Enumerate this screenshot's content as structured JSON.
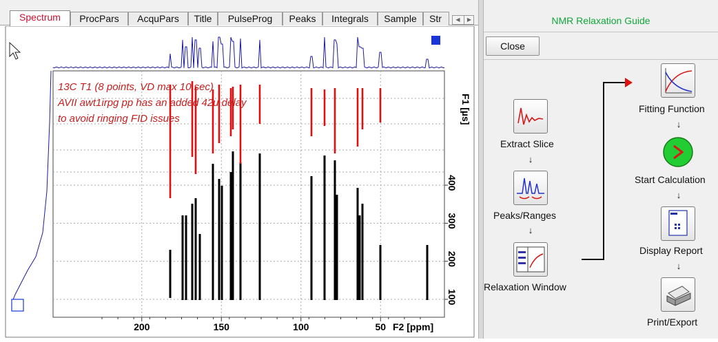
{
  "tabs": [
    {
      "label": "Spectrum",
      "active": true
    },
    {
      "label": "ProcPars"
    },
    {
      "label": "AcquPars"
    },
    {
      "label": "Title"
    },
    {
      "label": "PulseProg"
    },
    {
      "label": "Peaks"
    },
    {
      "label": "Integrals"
    },
    {
      "label": "Sample"
    },
    {
      "label": "Str"
    }
  ],
  "tab_scroll": {
    "left_icon": "triangle-left-icon",
    "right_icon": "triangle-right-icon"
  },
  "spectrum": {
    "annotation_lines": [
      "13C T1 (8 points, VD max 10 sec)",
      "AVII awt1irpg pp has an added 42u delay",
      "to avoid ringing FID issues"
    ],
    "f1_axis_label": "F1 [µs]",
    "f1_ticks": [
      "100",
      "200",
      "300",
      "400"
    ],
    "f2_axis_label": "F2 [ppm]",
    "f2_ticks": [
      "200",
      "150",
      "100",
      "50"
    ],
    "colors": {
      "positive": "#000000",
      "negative": "#dd1111",
      "projection": "#1a1aa0",
      "text_red": "#c81e1e",
      "grid": "#a8a8a8",
      "marker": "#1a34d8"
    }
  },
  "guide": {
    "title": "NMR Relaxation Guide",
    "close_label": "Close",
    "steps": [
      {
        "label": "Extract Slice",
        "icon": "extract-slice-icon"
      },
      {
        "label": "Peaks/Ranges",
        "icon": "peaks-ranges-icon"
      },
      {
        "label": "Relaxation Window",
        "icon": "relaxation-window-icon"
      },
      {
        "label": "Fitting Function",
        "icon": "fitting-function-icon"
      },
      {
        "label": "Start Calculation",
        "icon": "start-calculation-icon"
      },
      {
        "label": "Display Report",
        "icon": "display-report-icon"
      },
      {
        "label": "Print/Export",
        "icon": "printer-icon"
      }
    ],
    "arrow_glyph": "↓",
    "colors": {
      "title": "#11a83a",
      "connector_arrow": "#dd1111",
      "start_button": "#22cc33"
    }
  }
}
